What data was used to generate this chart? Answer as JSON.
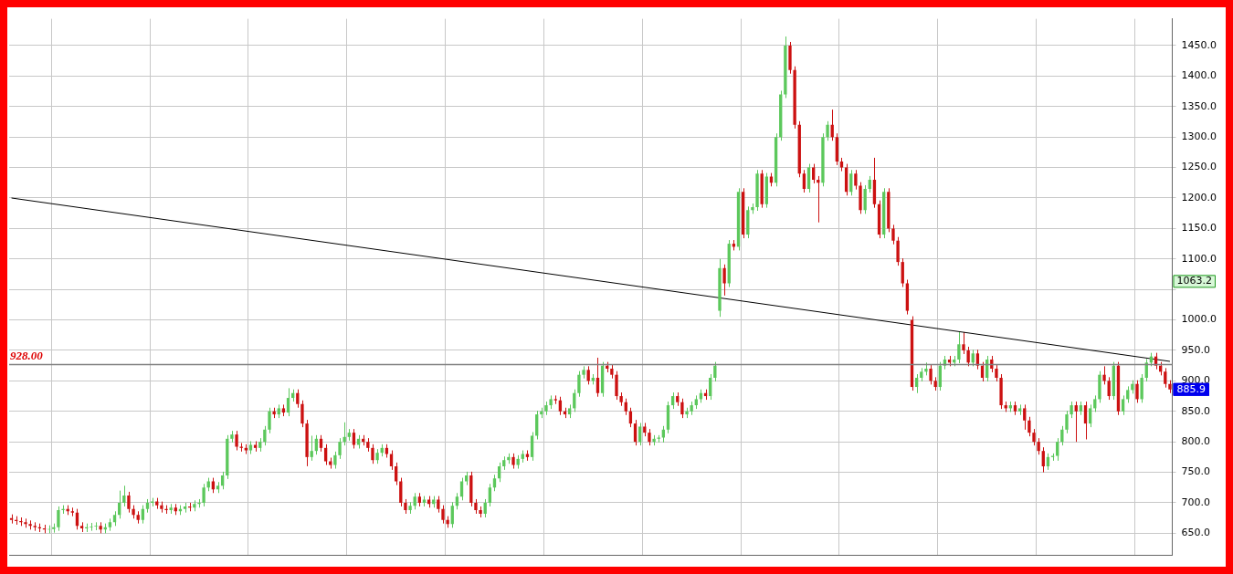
{
  "chart_data": {
    "type": "candlestick",
    "categories": [
      null,
      null,
      null,
      null,
      null,
      null,
      null,
      null,
      null,
      null,
      null,
      null,
      null,
      null,
      null,
      null,
      null,
      null,
      null,
      null,
      null,
      null,
      null,
      null,
      null,
      null,
      null,
      null,
      null,
      null,
      null,
      null,
      null,
      null,
      null,
      null,
      null,
      null,
      null,
      null,
      null,
      null,
      null,
      null,
      null,
      null,
      null,
      null,
      null,
      null,
      null,
      null,
      null,
      null,
      null,
      null,
      null,
      null,
      null,
      null,
      null,
      null,
      null,
      null,
      null,
      null,
      null,
      null,
      null,
      null,
      null,
      null,
      null,
      null,
      null,
      null,
      null,
      null,
      null,
      null,
      null,
      null,
      null,
      null,
      null,
      null,
      null,
      null,
      null,
      null,
      null,
      null,
      null,
      null,
      null,
      null,
      null,
      null,
      null,
      null,
      null,
      null,
      null,
      null,
      null,
      null,
      null,
      null,
      null,
      null,
      null,
      null,
      null,
      null,
      null,
      null,
      null,
      null,
      null,
      null,
      null,
      null,
      null,
      null,
      null,
      null,
      null,
      null,
      null,
      null,
      null,
      null,
      null,
      null,
      null,
      null,
      null,
      null,
      null,
      null,
      null,
      null,
      null,
      null,
      null,
      null,
      null,
      null,
      null,
      null,
      null,
      null,
      null,
      null,
      null,
      null,
      null,
      null,
      null,
      null,
      null,
      null,
      null,
      null,
      null,
      null,
      null,
      null,
      null,
      null,
      null,
      null,
      null,
      null,
      null,
      null,
      null,
      null,
      null,
      null,
      null,
      null,
      null,
      null,
      null,
      null,
      null,
      null,
      null,
      null,
      null,
      null,
      null,
      null,
      null,
      null,
      null,
      null,
      null,
      null,
      null,
      null,
      null,
      null,
      null,
      null,
      null,
      null,
      null,
      null,
      null,
      null,
      null,
      null,
      null,
      null,
      null,
      null,
      null,
      null,
      null,
      null,
      null,
      null,
      null,
      null,
      null,
      null,
      null,
      null,
      null,
      null,
      null,
      null,
      null,
      null,
      null,
      null,
      null,
      null,
      null,
      null,
      null,
      null,
      null,
      null,
      null,
      null
    ],
    "ohlc": [
      [
        675,
        681,
        666,
        672
      ],
      [
        672,
        678,
        664,
        670
      ],
      [
        670,
        676,
        662,
        668
      ],
      [
        668,
        674,
        659,
        665
      ],
      [
        665,
        671,
        656,
        662
      ],
      [
        662,
        668,
        654,
        660
      ],
      [
        660,
        666,
        652,
        658
      ],
      [
        658,
        664,
        650,
        656
      ],
      [
        656,
        663,
        650,
        657
      ],
      [
        657,
        666,
        651,
        660
      ],
      [
        660,
        694,
        654,
        688
      ],
      [
        688,
        696,
        682,
        690
      ],
      [
        690,
        696,
        680,
        686
      ],
      [
        686,
        692,
        678,
        684
      ],
      [
        684,
        690,
        656,
        662
      ],
      [
        662,
        668,
        652,
        658
      ],
      [
        658,
        666,
        652,
        660
      ],
      [
        660,
        667,
        654,
        661
      ],
      [
        661,
        668,
        655,
        662
      ],
      [
        662,
        668,
        650,
        656
      ],
      [
        656,
        666,
        650,
        660
      ],
      [
        660,
        674,
        654,
        668
      ],
      [
        668,
        686,
        662,
        680
      ],
      [
        680,
        720,
        674,
        700
      ],
      [
        700,
        728,
        694,
        712
      ],
      [
        712,
        718,
        684,
        690
      ],
      [
        690,
        696,
        674,
        680
      ],
      [
        680,
        686,
        666,
        672
      ],
      [
        672,
        696,
        666,
        690
      ],
      [
        690,
        706,
        684,
        700
      ],
      [
        700,
        708,
        694,
        702
      ],
      [
        702,
        708,
        690,
        696
      ],
      [
        696,
        702,
        684,
        690
      ],
      [
        690,
        696,
        682,
        688
      ],
      [
        688,
        698,
        682,
        692
      ],
      [
        692,
        698,
        680,
        686
      ],
      [
        686,
        696,
        680,
        690
      ],
      [
        690,
        700,
        684,
        694
      ],
      [
        694,
        700,
        686,
        692
      ],
      [
        692,
        704,
        686,
        698
      ],
      [
        698,
        706,
        692,
        700
      ],
      [
        700,
        731,
        694,
        725
      ],
      [
        725,
        741,
        719,
        735
      ],
      [
        735,
        741,
        716,
        722
      ],
      [
        722,
        734,
        716,
        728
      ],
      [
        728,
        751,
        722,
        745
      ],
      [
        745,
        811,
        739,
        805
      ],
      [
        805,
        818,
        799,
        812
      ],
      [
        812,
        818,
        786,
        792
      ],
      [
        792,
        798,
        784,
        790
      ],
      [
        790,
        796,
        780,
        786
      ],
      [
        786,
        801,
        780,
        795
      ],
      [
        795,
        801,
        784,
        790
      ],
      [
        790,
        806,
        784,
        800
      ],
      [
        800,
        826,
        794,
        820
      ],
      [
        820,
        856,
        814,
        850
      ],
      [
        850,
        856,
        839,
        845
      ],
      [
        845,
        861,
        839,
        855
      ],
      [
        855,
        861,
        842,
        848
      ],
      [
        848,
        888,
        842,
        872
      ],
      [
        872,
        886,
        866,
        880
      ],
      [
        880,
        886,
        856,
        862
      ],
      [
        862,
        868,
        824,
        830
      ],
      [
        830,
        836,
        760,
        775
      ],
      [
        775,
        810,
        769,
        785
      ],
      [
        785,
        811,
        779,
        805
      ],
      [
        805,
        811,
        784,
        790
      ],
      [
        790,
        796,
        762,
        768
      ],
      [
        768,
        774,
        756,
        762
      ],
      [
        762,
        784,
        756,
        778
      ],
      [
        778,
        806,
        772,
        800
      ],
      [
        800,
        832,
        794,
        808
      ],
      [
        808,
        821,
        802,
        815
      ],
      [
        815,
        821,
        789,
        795
      ],
      [
        795,
        811,
        789,
        805
      ],
      [
        805,
        811,
        794,
        800
      ],
      [
        800,
        806,
        784,
        790
      ],
      [
        790,
        796,
        764,
        770
      ],
      [
        770,
        788,
        764,
        782
      ],
      [
        782,
        796,
        776,
        790
      ],
      [
        790,
        796,
        774,
        780
      ],
      [
        780,
        786,
        754,
        760
      ],
      [
        760,
        766,
        729,
        735
      ],
      [
        735,
        741,
        694,
        700
      ],
      [
        700,
        706,
        682,
        688
      ],
      [
        688,
        701,
        682,
        695
      ],
      [
        695,
        716,
        689,
        710
      ],
      [
        710,
        716,
        694,
        700
      ],
      [
        700,
        711,
        694,
        705
      ],
      [
        705,
        711,
        692,
        698
      ],
      [
        698,
        711,
        692,
        705
      ],
      [
        705,
        711,
        684,
        690
      ],
      [
        690,
        696,
        666,
        672
      ],
      [
        672,
        678,
        659,
        665
      ],
      [
        665,
        701,
        659,
        695
      ],
      [
        695,
        716,
        689,
        710
      ],
      [
        710,
        741,
        704,
        735
      ],
      [
        735,
        751,
        729,
        745
      ],
      [
        745,
        751,
        694,
        700
      ],
      [
        700,
        706,
        682,
        688
      ],
      [
        688,
        694,
        676,
        682
      ],
      [
        682,
        706,
        676,
        700
      ],
      [
        700,
        731,
        694,
        725
      ],
      [
        725,
        746,
        719,
        740
      ],
      [
        740,
        766,
        734,
        760
      ],
      [
        760,
        776,
        754,
        770
      ],
      [
        770,
        781,
        764,
        775
      ],
      [
        775,
        781,
        756,
        762
      ],
      [
        762,
        778,
        756,
        772
      ],
      [
        772,
        786,
        766,
        780
      ],
      [
        780,
        786,
        769,
        775
      ],
      [
        775,
        816,
        769,
        810
      ],
      [
        810,
        851,
        804,
        845
      ],
      [
        845,
        856,
        839,
        850
      ],
      [
        850,
        866,
        844,
        860
      ],
      [
        860,
        876,
        854,
        870
      ],
      [
        870,
        876,
        862,
        868
      ],
      [
        868,
        874,
        844,
        850
      ],
      [
        850,
        856,
        839,
        845
      ],
      [
        845,
        861,
        839,
        855
      ],
      [
        855,
        886,
        849,
        880
      ],
      [
        880,
        916,
        874,
        910
      ],
      [
        910,
        924,
        904,
        918
      ],
      [
        918,
        924,
        894,
        900
      ],
      [
        900,
        911,
        894,
        905
      ],
      [
        905,
        938,
        874,
        880
      ],
      [
        880,
        931,
        874,
        925
      ],
      [
        925,
        931,
        914,
        920
      ],
      [
        920,
        926,
        904,
        910
      ],
      [
        910,
        916,
        869,
        875
      ],
      [
        875,
        881,
        859,
        865
      ],
      [
        865,
        871,
        844,
        850
      ],
      [
        850,
        856,
        824,
        830
      ],
      [
        830,
        836,
        794,
        800
      ],
      [
        800,
        831,
        794,
        825
      ],
      [
        825,
        831,
        809,
        815
      ],
      [
        815,
        821,
        794,
        800
      ],
      [
        800,
        811,
        794,
        805
      ],
      [
        805,
        811,
        799,
        807
      ],
      [
        807,
        826,
        799,
        820
      ],
      [
        820,
        866,
        814,
        860
      ],
      [
        860,
        881,
        854,
        875
      ],
      [
        875,
        881,
        859,
        865
      ],
      [
        865,
        871,
        839,
        845
      ],
      [
        845,
        856,
        839,
        850
      ],
      [
        850,
        866,
        844,
        860
      ],
      [
        860,
        876,
        854,
        870
      ],
      [
        870,
        886,
        864,
        880
      ],
      [
        880,
        886,
        869,
        875
      ],
      [
        875,
        911,
        869,
        905
      ],
      [
        905,
        931,
        899,
        925
      ],
      [
        1015,
        1100,
        1005,
        1085
      ],
      [
        1085,
        1091,
        1040,
        1060
      ],
      [
        1060,
        1131,
        1054,
        1125
      ],
      [
        1125,
        1131,
        1114,
        1120
      ],
      [
        1120,
        1216,
        1114,
        1210
      ],
      [
        1210,
        1216,
        1134,
        1140
      ],
      [
        1140,
        1186,
        1134,
        1180
      ],
      [
        1180,
        1191,
        1174,
        1185
      ],
      [
        1185,
        1246,
        1179,
        1240
      ],
      [
        1240,
        1246,
        1184,
        1190
      ],
      [
        1190,
        1241,
        1184,
        1235
      ],
      [
        1235,
        1241,
        1219,
        1225
      ],
      [
        1225,
        1306,
        1219,
        1300
      ],
      [
        1300,
        1376,
        1294,
        1370
      ],
      [
        1370,
        1465,
        1364,
        1450
      ],
      [
        1450,
        1456,
        1404,
        1410
      ],
      [
        1410,
        1416,
        1314,
        1320
      ],
      [
        1320,
        1326,
        1234,
        1240
      ],
      [
        1240,
        1246,
        1209,
        1215
      ],
      [
        1215,
        1256,
        1209,
        1250
      ],
      [
        1250,
        1256,
        1224,
        1230
      ],
      [
        1230,
        1236,
        1160,
        1225
      ],
      [
        1225,
        1306,
        1219,
        1300
      ],
      [
        1300,
        1326,
        1294,
        1320
      ],
      [
        1320,
        1345,
        1294,
        1300
      ],
      [
        1300,
        1306,
        1254,
        1260
      ],
      [
        1260,
        1266,
        1244,
        1250
      ],
      [
        1250,
        1256,
        1204,
        1210
      ],
      [
        1210,
        1246,
        1204,
        1240
      ],
      [
        1240,
        1246,
        1214,
        1220
      ],
      [
        1220,
        1226,
        1174,
        1180
      ],
      [
        1180,
        1221,
        1174,
        1215
      ],
      [
        1215,
        1236,
        1209,
        1230
      ],
      [
        1230,
        1266,
        1184,
        1190
      ],
      [
        1190,
        1196,
        1134,
        1140
      ],
      [
        1140,
        1216,
        1134,
        1210
      ],
      [
        1210,
        1216,
        1144,
        1150
      ],
      [
        1150,
        1156,
        1124,
        1130
      ],
      [
        1130,
        1136,
        1089,
        1095
      ],
      [
        1095,
        1101,
        1054,
        1060
      ],
      [
        1060,
        1066,
        1009,
        1015
      ],
      [
        1000,
        1006,
        884,
        890
      ],
      [
        890,
        911,
        880,
        905
      ],
      [
        905,
        921,
        899,
        915
      ],
      [
        915,
        930,
        909,
        920
      ],
      [
        920,
        926,
        894,
        900
      ],
      [
        900,
        906,
        884,
        890
      ],
      [
        890,
        931,
        884,
        925
      ],
      [
        925,
        941,
        919,
        935
      ],
      [
        935,
        941,
        924,
        930
      ],
      [
        930,
        941,
        924,
        935
      ],
      [
        935,
        980,
        929,
        960
      ],
      [
        960,
        980,
        944,
        950
      ],
      [
        950,
        956,
        924,
        930
      ],
      [
        930,
        951,
        924,
        945
      ],
      [
        945,
        951,
        919,
        925
      ],
      [
        925,
        931,
        899,
        905
      ],
      [
        905,
        941,
        899,
        935
      ],
      [
        935,
        941,
        914,
        920
      ],
      [
        920,
        926,
        899,
        905
      ],
      [
        905,
        911,
        854,
        860
      ],
      [
        860,
        866,
        849,
        855
      ],
      [
        855,
        866,
        849,
        860
      ],
      [
        860,
        866,
        844,
        850
      ],
      [
        850,
        861,
        844,
        855
      ],
      [
        855,
        861,
        820,
        835
      ],
      [
        835,
        841,
        809,
        815
      ],
      [
        815,
        821,
        794,
        800
      ],
      [
        800,
        806,
        779,
        785
      ],
      [
        785,
        791,
        750,
        760
      ],
      [
        760,
        781,
        754,
        775
      ],
      [
        775,
        781,
        769,
        777
      ],
      [
        777,
        806,
        769,
        800
      ],
      [
        800,
        826,
        794,
        820
      ],
      [
        820,
        851,
        814,
        845
      ],
      [
        845,
        866,
        839,
        860
      ],
      [
        860,
        866,
        800,
        850
      ],
      [
        850,
        866,
        844,
        860
      ],
      [
        860,
        866,
        804,
        830
      ],
      [
        830,
        861,
        824,
        855
      ],
      [
        855,
        876,
        849,
        870
      ],
      [
        870,
        916,
        864,
        910
      ],
      [
        910,
        924,
        894,
        900
      ],
      [
        900,
        906,
        869,
        875
      ],
      [
        875,
        931,
        869,
        925
      ],
      [
        925,
        931,
        844,
        850
      ],
      [
        850,
        876,
        844,
        870
      ],
      [
        870,
        891,
        864,
        885
      ],
      [
        885,
        901,
        879,
        895
      ],
      [
        895,
        901,
        864,
        870
      ],
      [
        870,
        911,
        864,
        905
      ],
      [
        905,
        936,
        899,
        930
      ],
      [
        930,
        946,
        924,
        940
      ],
      [
        940,
        946,
        919,
        925
      ],
      [
        925,
        931,
        909,
        915
      ],
      [
        915,
        921,
        889,
        895
      ],
      [
        895,
        901,
        880,
        885.9
      ]
    ],
    "series": [
      {
        "type": "line",
        "color": "#000000",
        "values": [
          1200,
          null,
          null,
          null,
          null,
          null,
          null,
          null,
          null,
          null,
          null,
          null,
          null,
          null,
          null,
          null,
          null,
          null,
          null,
          null,
          null,
          null,
          null,
          null,
          null,
          null,
          null,
          null,
          null,
          null,
          null,
          null,
          null,
          null,
          null,
          null,
          null,
          null,
          null,
          null,
          null,
          null,
          null,
          null,
          null,
          null,
          null,
          null,
          null,
          null,
          null,
          null,
          null,
          null,
          null,
          null,
          null,
          null,
          null,
          null,
          null,
          null,
          null,
          null,
          null,
          null,
          null,
          null,
          null,
          null,
          null,
          null,
          null,
          null,
          null,
          null,
          null,
          null,
          null,
          null,
          null,
          null,
          null,
          null,
          null,
          null,
          null,
          null,
          null,
          null,
          null,
          null,
          null,
          null,
          null,
          null,
          null,
          null,
          null,
          null,
          null,
          null,
          null,
          null,
          null,
          null,
          null,
          null,
          null,
          null,
          null,
          null,
          null,
          null,
          null,
          null,
          null,
          null,
          null,
          null,
          null,
          null,
          null,
          null,
          null,
          null,
          null,
          null,
          null,
          null,
          null,
          null,
          null,
          null,
          null,
          null,
          null,
          null,
          null,
          null,
          null,
          null,
          null,
          null,
          null,
          null,
          null,
          null,
          null,
          null,
          null,
          null,
          null,
          null,
          null,
          null,
          null,
          null,
          null,
          null,
          null,
          null,
          null,
          null,
          null,
          null,
          null,
          null,
          null,
          null,
          null,
          null,
          null,
          null,
          null,
          null,
          null,
          null,
          null,
          null,
          null,
          null,
          null,
          null,
          null,
          null,
          null,
          null,
          null,
          null,
          null,
          null,
          null,
          null,
          null,
          null,
          null,
          null,
          null,
          null,
          null,
          null,
          null,
          null,
          null,
          null,
          null,
          null,
          null,
          null,
          null,
          null,
          null,
          null,
          null,
          null,
          null,
          null,
          null,
          null,
          null,
          null,
          null,
          null,
          null,
          null,
          null,
          null,
          null,
          null,
          null,
          null,
          null,
          null,
          null,
          null,
          null,
          null,
          null,
          null,
          null,
          null,
          null,
          null,
          null,
          null,
          null,
          932
        ]
      }
    ],
    "ylim": [
      614,
      1494
    ],
    "yticks": [
      {
        "value": 650,
        "label": "650.0"
      },
      {
        "value": 700,
        "label": "700.0"
      },
      {
        "value": 750,
        "label": "750.0"
      },
      {
        "value": 800,
        "label": "800.0"
      },
      {
        "value": 850,
        "label": "850.0"
      },
      {
        "value": 900,
        "label": "900.0"
      },
      {
        "value": 950,
        "label": "950.0"
      },
      {
        "value": 1000,
        "label": "1000.0"
      },
      {
        "value": 1050,
        "label": null
      },
      {
        "value": 1100,
        "label": "1100.0"
      },
      {
        "value": 1150,
        "label": "1150.0"
      },
      {
        "value": 1200,
        "label": "1200.0"
      },
      {
        "value": 1250,
        "label": "1250.0"
      },
      {
        "value": 1300,
        "label": "1300.0"
      },
      {
        "value": 1350,
        "label": "1350.0"
      },
      {
        "value": 1400,
        "label": "1400.0"
      },
      {
        "value": 1450,
        "label": "1450.0"
      }
    ],
    "ref_lines": [
      {
        "axis": "y",
        "value": 928,
        "label": "928.00",
        "color": "#808080"
      }
    ],
    "annotations": [
      "1063.2",
      "885.9"
    ],
    "colors": [
      "#cc1111",
      "#cc1111",
      "#cc1111",
      "#cc1111",
      "#cc1111",
      "#cc1111",
      "#cc1111",
      "#cc1111",
      "#5cc85c",
      "#5cc85c",
      "#5cc85c",
      "#5cc85c",
      "#cc1111",
      "#cc1111",
      "#cc1111",
      "#cc1111",
      "#5cc85c",
      "#5cc85c",
      "#5cc85c",
      "#cc1111",
      "#5cc85c",
      "#5cc85c",
      "#5cc85c",
      "#5cc85c",
      "#5cc85c",
      "#cc1111",
      "#cc1111",
      "#cc1111",
      "#5cc85c",
      "#5cc85c",
      "#5cc85c",
      "#cc1111",
      "#cc1111",
      "#cc1111",
      "#5cc85c",
      "#cc1111",
      "#5cc85c",
      "#5cc85c",
      "#cc1111",
      "#5cc85c",
      "#5cc85c",
      "#5cc85c",
      "#5cc85c",
      "#cc1111",
      "#5cc85c",
      "#5cc85c",
      "#5cc85c",
      "#5cc85c",
      "#cc1111",
      "#cc1111",
      "#cc1111",
      "#5cc85c",
      "#cc1111",
      "#5cc85c",
      "#5cc85c",
      "#5cc85c",
      "#cc1111",
      "#5cc85c",
      "#cc1111",
      "#5cc85c",
      "#5cc85c",
      "#cc1111",
      "#cc1111",
      "#cc1111",
      "#5cc85c",
      "#5cc85c",
      "#cc1111",
      "#cc1111",
      "#cc1111",
      "#5cc85c",
      "#5cc85c",
      "#5cc85c",
      "#5cc85c",
      "#cc1111",
      "#5cc85c",
      "#cc1111",
      "#cc1111",
      "#cc1111",
      "#5cc85c",
      "#5cc85c",
      "#cc1111",
      "#cc1111",
      "#cc1111",
      "#cc1111",
      "#cc1111",
      "#5cc85c",
      "#5cc85c",
      "#cc1111",
      "#5cc85c",
      "#cc1111",
      "#5cc85c",
      "#cc1111",
      "#cc1111",
      "#cc1111",
      "#5cc85c",
      "#5cc85c",
      "#5cc85c",
      "#5cc85c",
      "#cc1111",
      "#cc1111",
      "#cc1111",
      "#5cc85c",
      "#5cc85c",
      "#5cc85c",
      "#5cc85c",
      "#5cc85c",
      "#5cc85c",
      "#cc1111",
      "#5cc85c",
      "#5cc85c",
      "#cc1111",
      "#5cc85c",
      "#5cc85c",
      "#5cc85c",
      "#5cc85c",
      "#5cc85c",
      "#cc1111",
      "#cc1111",
      "#cc1111",
      "#5cc85c",
      "#5cc85c",
      "#5cc85c",
      "#5cc85c",
      "#cc1111",
      "#5cc85c",
      "#cc1111",
      "#5cc85c",
      "#cc1111",
      "#cc1111",
      "#cc1111",
      "#cc1111",
      "#cc1111",
      "#cc1111",
      "#cc1111",
      "#5cc85c",
      "#cc1111",
      "#cc1111",
      "#5cc85c",
      "#5cc85c",
      "#5cc85c",
      "#5cc85c",
      "#5cc85c",
      "#cc1111",
      "#cc1111",
      "#5cc85c",
      "#5cc85c",
      "#5cc85c",
      "#5cc85c",
      "#cc1111",
      "#5cc85c",
      "#5cc85c",
      "#5cc85c",
      "#cc1111",
      "#5cc85c",
      "#cc1111",
      "#5cc85c",
      "#cc1111",
      "#5cc85c",
      "#5cc85c",
      "#5cc85c",
      "#cc1111",
      "#5cc85c",
      "#cc1111",
      "#5cc85c",
      "#5cc85c",
      "#5cc85c",
      "#cc1111",
      "#cc1111",
      "#cc1111",
      "#cc1111",
      "#5cc85c",
      "#cc1111",
      "#cc1111",
      "#5cc85c",
      "#5cc85c",
      "#cc1111",
      "#cc1111",
      "#cc1111",
      "#cc1111",
      "#5cc85c",
      "#cc1111",
      "#cc1111",
      "#5cc85c",
      "#5cc85c",
      "#cc1111",
      "#cc1111",
      "#5cc85c",
      "#cc1111",
      "#cc1111",
      "#cc1111",
      "#cc1111",
      "#cc1111",
      "#cc1111",
      "#5cc85c",
      "#5cc85c",
      "#5cc85c",
      "#cc1111",
      "#cc1111",
      "#5cc85c",
      "#5cc85c",
      "#cc1111",
      "#5cc85c",
      "#5cc85c",
      "#cc1111",
      "#cc1111",
      "#5cc85c",
      "#cc1111",
      "#cc1111",
      "#5cc85c",
      "#cc1111",
      "#cc1111",
      "#cc1111",
      "#cc1111",
      "#5cc85c",
      "#cc1111",
      "#5cc85c",
      "#cc1111",
      "#cc1111",
      "#cc1111",
      "#cc1111",
      "#cc1111",
      "#5cc85c",
      "#5cc85c",
      "#5cc85c",
      "#5cc85c",
      "#5cc85c",
      "#5cc85c",
      "#cc1111",
      "#5cc85c",
      "#cc1111",
      "#5cc85c",
      "#5cc85c",
      "#5cc85c",
      "#cc1111",
      "#cc1111",
      "#5cc85c",
      "#cc1111",
      "#5cc85c",
      "#5cc85c",
      "#5cc85c",
      "#cc1111",
      "#5cc85c",
      "#5cc85c",
      "#5cc85c",
      "#cc1111",
      "#cc1111",
      "#cc1111",
      "#cc1111"
    ],
    "grid": true,
    "tick_labels": "y",
    "legend": false
  }
}
